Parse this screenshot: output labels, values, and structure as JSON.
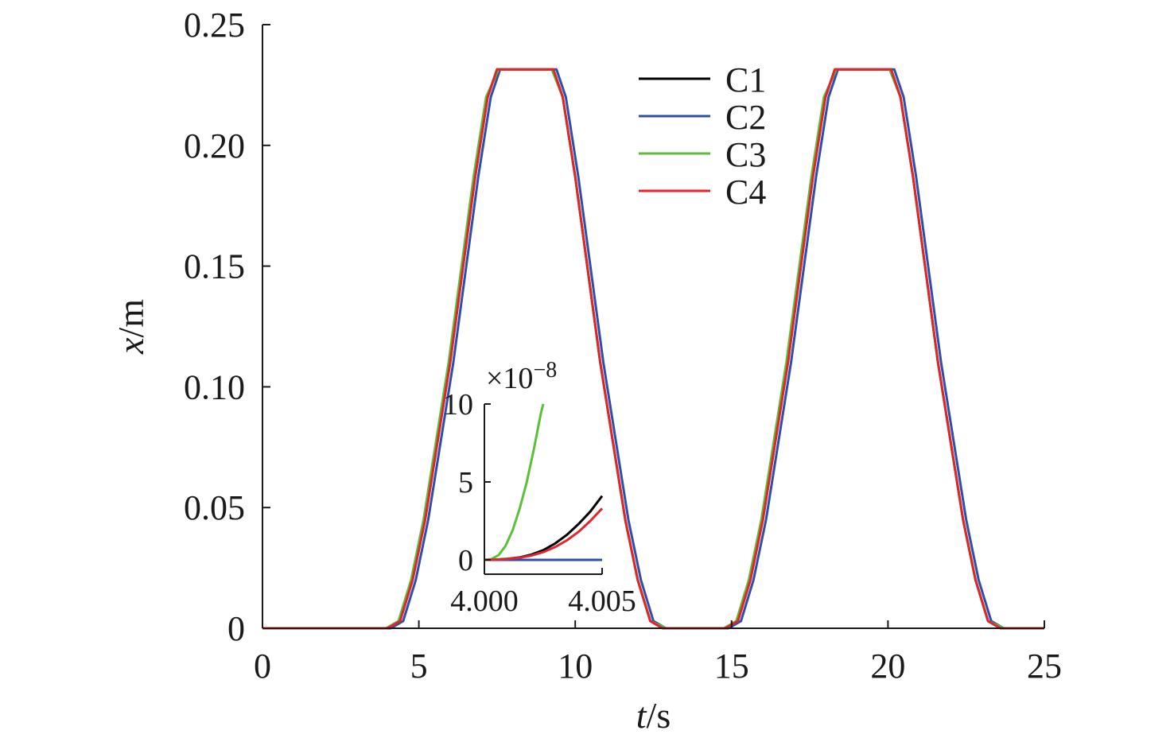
{
  "chart_data": [
    {
      "type": "line",
      "title": "",
      "xlabel": "t/s",
      "ylabel": "x/m",
      "xlabel_parts": {
        "var": "t",
        "unit": "/s"
      },
      "ylabel_parts": {
        "var": "x",
        "unit": "/m"
      },
      "xlim": [
        0,
        25
      ],
      "ylim": [
        0,
        0.25
      ],
      "xticks": [
        0,
        5,
        10,
        15,
        20,
        25
      ],
      "xtick_labels": [
        "0",
        "5",
        "10",
        "15",
        "20",
        "25"
      ],
      "yticks": [
        0,
        0.05,
        0.1,
        0.15,
        0.2,
        0.25
      ],
      "ytick_labels": [
        "0",
        "0.05",
        "0.10",
        "0.15",
        "0.20",
        "0.25"
      ],
      "grid": false,
      "legend_position": "top-right",
      "series": [
        {
          "name": "C1",
          "color": "#000000",
          "x": [
            0,
            4.0,
            4.4,
            4.8,
            5.2,
            6.0,
            6.8,
            7.2,
            7.5,
            9.3,
            9.6,
            10.0,
            10.8,
            11.6,
            12.0,
            12.4,
            12.8,
            14.8,
            15.2,
            15.6,
            16.0,
            16.8,
            17.6,
            18.0,
            18.3,
            20.1,
            20.4,
            20.8,
            21.6,
            22.4,
            22.8,
            23.2,
            23.6,
            25.0
          ],
          "y": [
            0,
            0,
            0.003,
            0.02,
            0.045,
            0.11,
            0.187,
            0.22,
            0.2315,
            0.2315,
            0.22,
            0.187,
            0.11,
            0.045,
            0.02,
            0.003,
            0,
            0,
            0.003,
            0.02,
            0.045,
            0.11,
            0.187,
            0.22,
            0.2315,
            0.2315,
            0.22,
            0.187,
            0.11,
            0.045,
            0.02,
            0.003,
            0,
            0
          ]
        },
        {
          "name": "C2",
          "color": "#2e4fa8",
          "x": [
            0,
            4.1,
            4.5,
            4.9,
            5.3,
            6.1,
            6.9,
            7.3,
            7.6,
            9.4,
            9.7,
            10.1,
            10.9,
            11.7,
            12.1,
            12.5,
            12.9,
            14.9,
            15.3,
            15.7,
            16.1,
            16.9,
            17.7,
            18.1,
            18.4,
            20.2,
            20.5,
            20.9,
            21.7,
            22.5,
            22.9,
            23.3,
            23.7,
            25.0
          ],
          "y": [
            0,
            0,
            0.003,
            0.02,
            0.045,
            0.11,
            0.187,
            0.22,
            0.2315,
            0.2315,
            0.22,
            0.187,
            0.11,
            0.045,
            0.02,
            0.003,
            0,
            0,
            0.003,
            0.02,
            0.045,
            0.11,
            0.187,
            0.22,
            0.2315,
            0.2315,
            0.22,
            0.187,
            0.11,
            0.045,
            0.02,
            0.003,
            0,
            0
          ]
        },
        {
          "name": "C3",
          "color": "#5cbf3a",
          "x": [
            0,
            3.95,
            4.35,
            4.75,
            5.15,
            5.95,
            6.75,
            7.15,
            7.55,
            9.25,
            9.6,
            10.0,
            10.8,
            11.6,
            12.0,
            12.4,
            12.9,
            14.75,
            15.15,
            15.55,
            15.95,
            16.75,
            17.55,
            17.95,
            18.35,
            20.05,
            20.4,
            20.8,
            21.6,
            22.4,
            22.8,
            23.2,
            23.7,
            25.0
          ],
          "y": [
            0,
            0,
            0.003,
            0.02,
            0.045,
            0.11,
            0.187,
            0.22,
            0.2315,
            0.2315,
            0.22,
            0.187,
            0.11,
            0.045,
            0.02,
            0.003,
            0,
            0,
            0.003,
            0.02,
            0.045,
            0.11,
            0.187,
            0.22,
            0.2315,
            0.2315,
            0.22,
            0.187,
            0.11,
            0.045,
            0.02,
            0.003,
            0,
            0
          ]
        },
        {
          "name": "C4",
          "color": "#e0262d",
          "x": [
            0,
            4.0,
            4.4,
            4.8,
            5.2,
            6.0,
            6.8,
            7.2,
            7.5,
            9.3,
            9.6,
            10.0,
            10.8,
            11.6,
            12.0,
            12.4,
            12.8,
            14.8,
            15.2,
            15.6,
            16.0,
            16.8,
            17.6,
            18.0,
            18.3,
            20.1,
            20.4,
            20.8,
            21.6,
            22.4,
            22.8,
            23.2,
            23.6,
            25.0
          ],
          "y": [
            0,
            0,
            0.003,
            0.02,
            0.045,
            0.11,
            0.187,
            0.22,
            0.2315,
            0.2315,
            0.22,
            0.187,
            0.11,
            0.045,
            0.02,
            0.003,
            0,
            0,
            0.003,
            0.02,
            0.045,
            0.11,
            0.187,
            0.22,
            0.2315,
            0.2315,
            0.22,
            0.187,
            0.11,
            0.045,
            0.02,
            0.003,
            0,
            0
          ]
        }
      ]
    },
    {
      "type": "line",
      "title": "",
      "xlabel": "",
      "ylabel": "",
      "xlim": [
        4.0,
        4.005
      ],
      "ylim": [
        0,
        10
      ],
      "xticks": [
        4.0,
        4.005
      ],
      "xtick_labels": [
        "4.000",
        "4.005"
      ],
      "yticks": [
        0,
        5,
        10
      ],
      "ytick_labels": [
        "0",
        "5",
        "10"
      ],
      "y_multiplier": {
        "base": "×10",
        "exponent": "−8"
      },
      "grid": false,
      "series": [
        {
          "name": "C1",
          "color": "#000000",
          "x": [
            4.0,
            4.0005,
            4.001,
            4.0015,
            4.002,
            4.0025,
            4.003,
            4.0035,
            4.004,
            4.0045,
            4.005
          ],
          "y": [
            0,
            0.02,
            0.07,
            0.16,
            0.34,
            0.62,
            1.05,
            1.6,
            2.3,
            3.1,
            4.1
          ]
        },
        {
          "name": "C2",
          "color": "#2e4fa8",
          "x": [
            4.0,
            4.005
          ],
          "y": [
            0,
            0
          ]
        },
        {
          "name": "C3",
          "color": "#5cbf3a",
          "x": [
            4.0,
            4.0003,
            4.0006,
            4.0009,
            4.0012,
            4.0015,
            4.0018,
            4.0021,
            4.0024,
            4.0025
          ],
          "y": [
            0,
            0.05,
            0.3,
            0.9,
            1.9,
            3.3,
            5.0,
            7.1,
            9.4,
            10
          ]
        },
        {
          "name": "C4",
          "color": "#e0262d",
          "x": [
            4.0,
            4.0005,
            4.001,
            4.0015,
            4.002,
            4.0025,
            4.003,
            4.0035,
            4.004,
            4.0045,
            4.005
          ],
          "y": [
            0,
            0.02,
            0.06,
            0.14,
            0.28,
            0.5,
            0.82,
            1.25,
            1.8,
            2.5,
            3.3
          ]
        }
      ]
    }
  ]
}
